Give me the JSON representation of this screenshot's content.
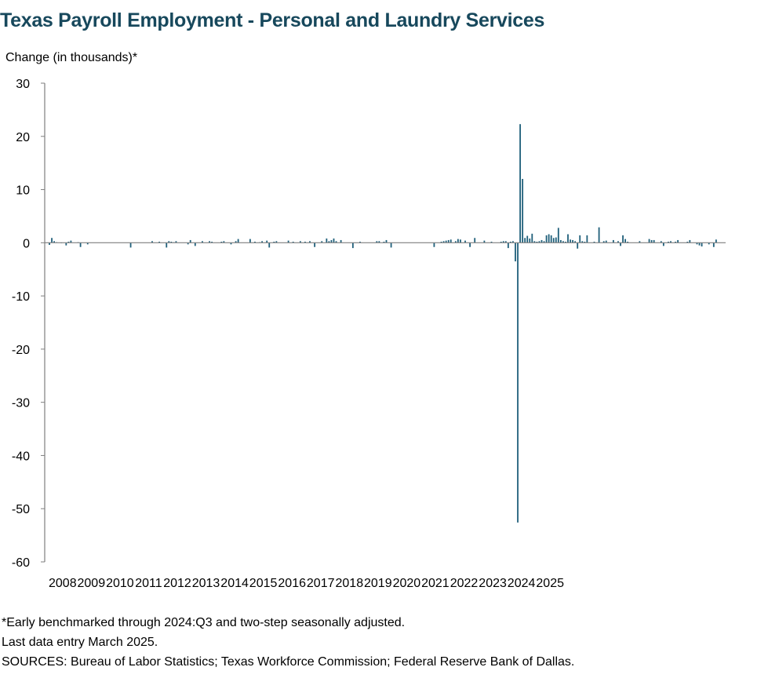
{
  "chart_data": {
    "type": "bar",
    "title": "Texas Payroll Employment - Personal and Laundry Services",
    "ylabel": "Change (in thousands)*",
    "xlabel": "",
    "ylim": [
      -60,
      30
    ],
    "yticks": [
      "30",
      "20",
      "10",
      "0",
      "-10",
      "-20",
      "-30",
      "-40",
      "-50",
      "-60"
    ],
    "ytick_values": [
      30,
      20,
      10,
      0,
      -10,
      -20,
      -30,
      -40,
      -50,
      -60
    ],
    "xticks": [
      "2008",
      "2009",
      "2010",
      "2011",
      "2012",
      "2013",
      "2014",
      "2015",
      "2016",
      "2017",
      "2018",
      "2019",
      "2020",
      "2021",
      "2022",
      "2023",
      "2024",
      "2025"
    ],
    "color": "#1f5f7a",
    "start": "2008-01",
    "end": "2025-03",
    "series": [
      {
        "values": [
          -0.4,
          0.9,
          0.3,
          0.1,
          0.0,
          -0.1,
          0.0,
          -0.5,
          0.2,
          0.4,
          0.0,
          0.0,
          0.1,
          -0.8,
          0.0,
          0.0,
          -0.3,
          0.0,
          0.0,
          0.0,
          0.0,
          0.0,
          0.0,
          0.0,
          0.0,
          0.0,
          0.0,
          0.0,
          0.0,
          0.0,
          0.0,
          0.0,
          0.0,
          0.0,
          -0.9,
          0.0,
          0.0,
          0.0,
          0.0,
          0.0,
          0.0,
          0.0,
          0.0,
          0.3,
          0.0,
          0.0,
          0.2,
          0.0,
          0.0,
          -0.9,
          0.3,
          0.2,
          0.1,
          0.3,
          0.0,
          0.0,
          0.0,
          0.0,
          -0.3,
          0.5,
          0.0,
          -0.6,
          0.0,
          0.0,
          0.3,
          0.0,
          0.0,
          0.3,
          0.2,
          0.0,
          0.0,
          0.0,
          0.2,
          0.3,
          0.0,
          0.0,
          -0.3,
          0.0,
          0.3,
          0.7,
          0.0,
          0.0,
          0.0,
          0.0,
          0.7,
          0.0,
          0.2,
          0.0,
          0.1,
          0.3,
          0.0,
          0.4,
          -0.9,
          0.0,
          0.2,
          0.3,
          0.0,
          0.0,
          0.0,
          0.0,
          0.4,
          0.0,
          0.2,
          0.0,
          0.0,
          0.3,
          0.0,
          0.2,
          0.0,
          0.3,
          0.0,
          -0.8,
          0.0,
          0.0,
          0.3,
          0.0,
          0.8,
          0.3,
          0.5,
          0.8,
          0.3,
          0.0,
          0.5,
          0.0,
          0.0,
          0.0,
          0.0,
          -1.0,
          0.0,
          0.0,
          0.2,
          0.0,
          0.0,
          0.0,
          0.0,
          0.0,
          0.0,
          0.3,
          0.3,
          0.0,
          0.2,
          0.5,
          0.0,
          -0.9,
          0.0,
          0.0,
          0.0,
          0.0,
          0.0,
          0.0,
          0.0,
          0.0,
          0.0,
          0.0,
          0.0,
          0.0,
          0.0,
          0.0,
          0.0,
          0.0,
          0.0,
          -0.8,
          0.0,
          0.0,
          0.2,
          0.3,
          0.4,
          0.5,
          0.6,
          0.0,
          0.3,
          0.7,
          0.6,
          0.0,
          0.4,
          0.0,
          -0.8,
          0.0,
          0.9,
          0.0,
          0.0,
          0.0,
          0.4,
          0.0,
          0.0,
          0.2,
          0.0,
          0.0,
          0.0,
          0.2,
          0.3,
          0.3,
          -1.0,
          0.2,
          0.3,
          -3.5,
          -52.6,
          22.3,
          12.0,
          0.9,
          1.3,
          0.8,
          1.7,
          0.3,
          0.2,
          0.3,
          0.5,
          0.3,
          1.4,
          1.6,
          1.4,
          0.9,
          1.0,
          2.8,
          0.5,
          0.3,
          0.2,
          1.6,
          0.6,
          0.5,
          0.3,
          -1.1,
          1.4,
          0.3,
          0.2,
          1.4,
          0.0,
          0.0,
          0.2,
          0.0,
          2.9,
          0.0,
          0.3,
          0.4,
          0.0,
          0.0,
          0.5,
          0.0,
          0.3,
          -0.6,
          1.4,
          0.7,
          0.2,
          0.0,
          0.0,
          0.0,
          0.0,
          0.3,
          0.0,
          0.0,
          0.0,
          0.7,
          0.5,
          0.5,
          0.0,
          0.0,
          0.3,
          -0.6,
          0.0,
          0.2,
          0.3,
          0.0,
          0.2,
          0.5,
          0.0,
          0.0,
          0.0,
          0.2,
          0.5,
          0.0,
          0.0,
          -0.3,
          -0.5,
          -0.7,
          0.0,
          0.0,
          -0.3,
          0.0,
          -0.8,
          0.6,
          0.0,
          0.0,
          0.0
        ]
      }
    ]
  },
  "notes": {
    "line1": "*Early benchmarked through 2024:Q3 and two-step seasonally adjusted.",
    "line2": "Last data entry March 2025.",
    "line3": "SOURCES: Bureau of Labor Statistics; Texas Workforce Commission; Federal Reserve Bank of Dallas."
  }
}
